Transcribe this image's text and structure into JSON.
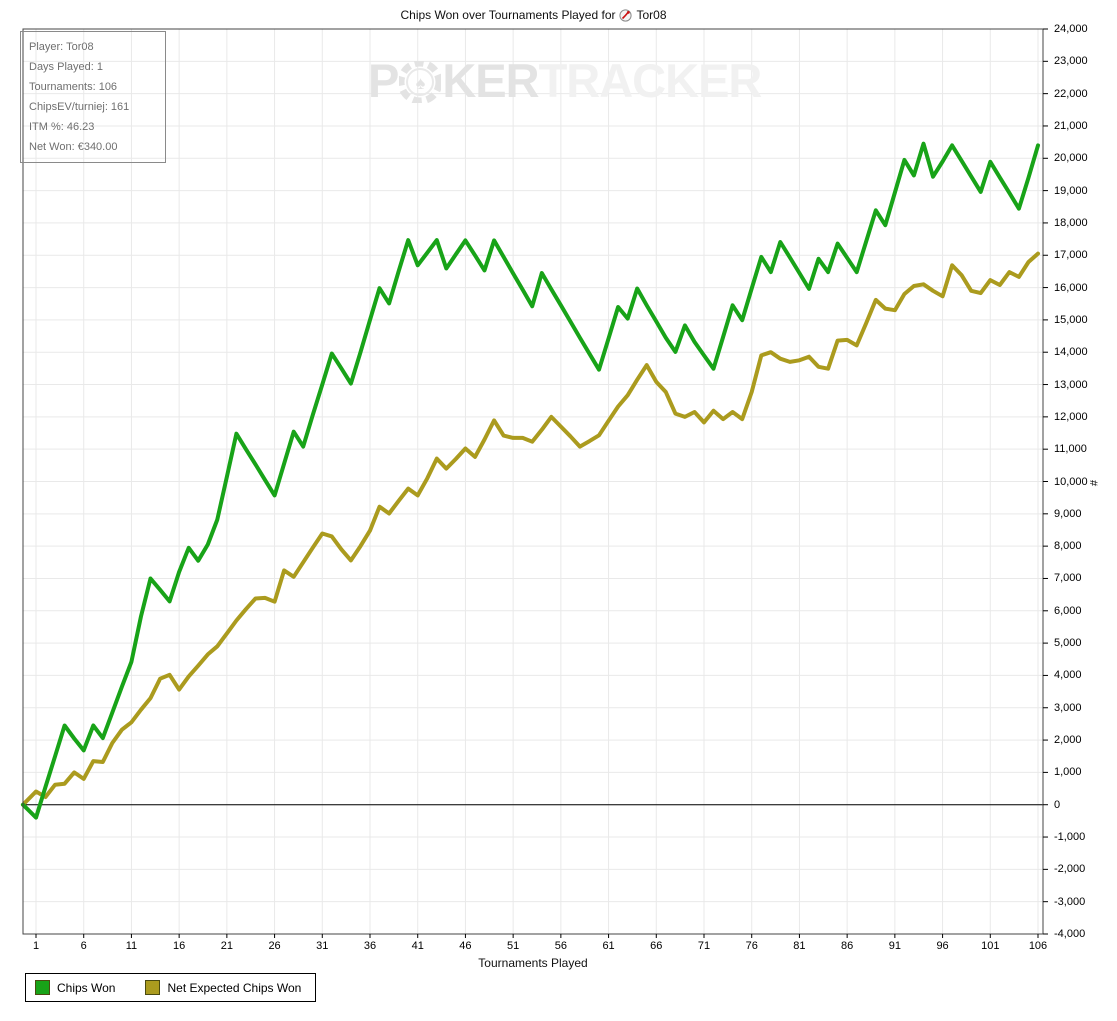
{
  "title": {
    "prefix": "Chips Won over Tournaments Played for",
    "player": "Tor08"
  },
  "watermark": {
    "part1": "P",
    "part2": "KER",
    "part3": "TRACKER"
  },
  "info_box": {
    "lines": [
      "Player: Tor08",
      "Days Played: 1",
      "Tournaments: 106",
      "ChipsEV/turniej: 161",
      "ITM %: 46.23",
      "Net Won: €340.00"
    ]
  },
  "chart_data": {
    "type": "line",
    "title": "Chips Won over Tournaments Played for Tor08",
    "xlabel": "Tournaments Played",
    "ylabel": "#",
    "grid": true,
    "legend_position": "bottom-left",
    "x_axis": {
      "min": 1,
      "max": 106,
      "tick_values": [
        1,
        6,
        11,
        16,
        21,
        26,
        31,
        36,
        41,
        46,
        51,
        56,
        61,
        66,
        71,
        76,
        81,
        86,
        91,
        96,
        101,
        106
      ]
    },
    "y_axis": {
      "min": -4000,
      "max": 24000,
      "step": 1000,
      "tick_values": [
        24000,
        23000,
        22000,
        21000,
        20000,
        19000,
        18000,
        17000,
        16000,
        15000,
        14000,
        13000,
        12000,
        11000,
        10000,
        9000,
        8000,
        7000,
        6000,
        5000,
        4000,
        3000,
        2000,
        1000,
        0,
        -1000,
        -2000,
        -3000,
        -4000
      ]
    },
    "x_note": "values arrays start with an origin point 0 at the left plot edge, then tournaments 1..106",
    "series": [
      {
        "name": "Chips Won",
        "color": "#18a318",
        "values": [
          0,
          -400,
          550,
          1500,
          2450,
          2050,
          1680,
          2450,
          2060,
          2850,
          3650,
          4420,
          5830,
          7000,
          6650,
          6290,
          7200,
          7950,
          7550,
          8050,
          8820,
          10150,
          11480,
          11000,
          10530,
          10050,
          9570,
          10550,
          11540,
          11080,
          12050,
          13000,
          13960,
          13500,
          13030,
          14000,
          15000,
          15980,
          15510,
          16500,
          17470,
          16690,
          17080,
          17470,
          16590,
          17030,
          17460,
          17000,
          16530,
          17460,
          16950,
          16440,
          15930,
          15420,
          16450,
          15950,
          15450,
          14950,
          14450,
          13950,
          13460,
          14430,
          15400,
          15040,
          15970,
          15450,
          14950,
          14450,
          14010,
          14830,
          14320,
          13900,
          13490,
          14470,
          15450,
          14990,
          15970,
          16950,
          16480,
          17410,
          16930,
          16450,
          15960,
          16890,
          16480,
          17360,
          16920,
          16480,
          17430,
          18390,
          17930,
          18940,
          19950,
          19470,
          20450,
          19430,
          19900,
          20400,
          19920,
          19440,
          18960,
          19890,
          19410,
          18930,
          18440,
          19400,
          20400
        ]
      },
      {
        "name": "Net Expected Chips Won",
        "color": "#ab9b1e",
        "values": [
          0,
          410,
          240,
          620,
          650,
          1000,
          800,
          1350,
          1320,
          1910,
          2320,
          2550,
          2940,
          3300,
          3900,
          4020,
          3560,
          3970,
          4300,
          4650,
          4900,
          5300,
          5700,
          6050,
          6380,
          6400,
          6280,
          7250,
          7050,
          7500,
          7950,
          8390,
          8300,
          7900,
          7560,
          8000,
          8480,
          9220,
          9010,
          9400,
          9780,
          9570,
          10100,
          10710,
          10400,
          10700,
          11020,
          10760,
          11300,
          11890,
          11420,
          11350,
          11350,
          11230,
          11600,
          12000,
          11700,
          11400,
          11080,
          11250,
          11430,
          11880,
          12320,
          12670,
          13150,
          13600,
          13080,
          12770,
          12100,
          12000,
          12150,
          11830,
          12190,
          11930,
          12150,
          11930,
          12770,
          13900,
          14000,
          13800,
          13700,
          13750,
          13860,
          13550,
          13490,
          14360,
          14380,
          14210,
          14900,
          15620,
          15350,
          15300,
          15800,
          16050,
          16100,
          15900,
          15730,
          16690,
          16380,
          15900,
          15830,
          16230,
          16080,
          16480,
          16330,
          16790,
          17050
        ]
      }
    ]
  }
}
